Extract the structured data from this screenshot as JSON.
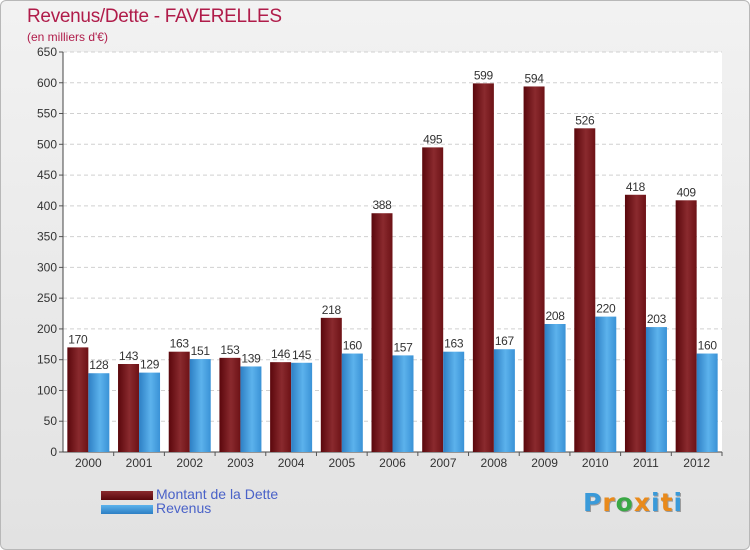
{
  "header": {
    "title": "Revenus/Dette - FAVERELLES",
    "subtitle": "(en milliers d'€)"
  },
  "legend": {
    "items": [
      {
        "label": "Montant de la Dette",
        "color": "#6b0f14"
      },
      {
        "label": "Revenus",
        "color": "#3b96d8"
      }
    ]
  },
  "logo": {
    "letters": [
      "P",
      "r",
      "o",
      "x",
      "i",
      "t",
      "i"
    ],
    "colors": [
      "#3a9ad9",
      "#e98a1b",
      "#3aa845",
      "#e98a1b",
      "#3a9ad9",
      "#e98a1b",
      "#3a9ad9"
    ]
  },
  "chart_data": {
    "type": "bar",
    "categories": [
      "2000",
      "2001",
      "2002",
      "2003",
      "2004",
      "2005",
      "2006",
      "2007",
      "2008",
      "2009",
      "2010",
      "2011",
      "2012"
    ],
    "series": [
      {
        "name": "Montant de la Dette",
        "color": "#6b0f14",
        "values": [
          170,
          143,
          163,
          153,
          146,
          218,
          388,
          495,
          599,
          594,
          526,
          418,
          409
        ]
      },
      {
        "name": "Revenus",
        "color": "#3b96d8",
        "values": [
          128,
          129,
          151,
          139,
          145,
          160,
          157,
          163,
          167,
          208,
          220,
          203,
          160
        ]
      }
    ],
    "ylim": [
      0,
      650
    ],
    "yticks": [
      0,
      50,
      100,
      150,
      200,
      250,
      300,
      350,
      400,
      450,
      500,
      550,
      600,
      650
    ],
    "grid": true,
    "legend_position": "bottom-left"
  }
}
